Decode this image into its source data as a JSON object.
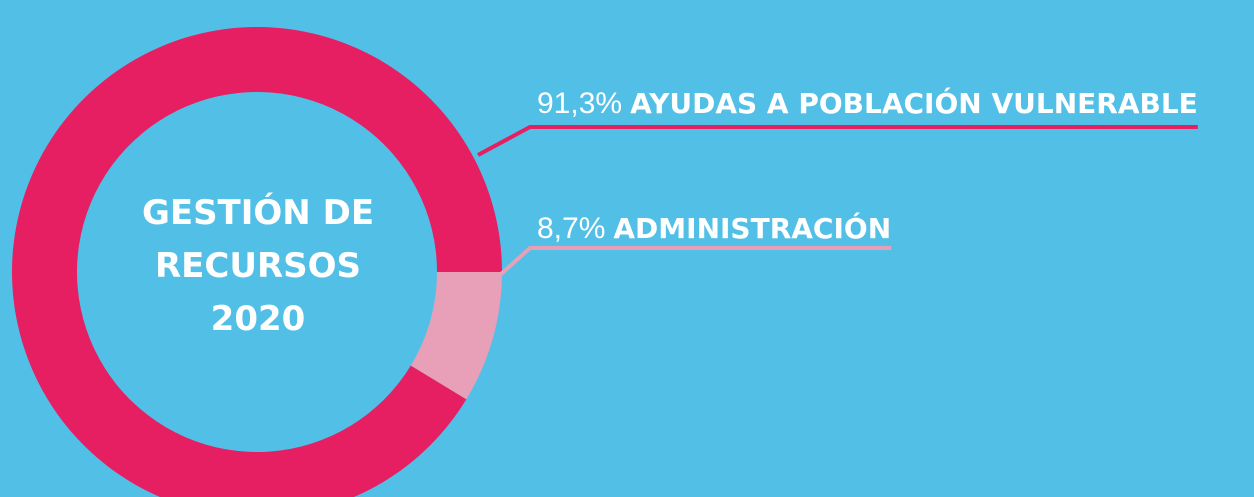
{
  "chart_data": {
    "type": "pie",
    "donut": true,
    "title": [
      "GESTIÓN DE",
      "RECURSOS",
      "2020"
    ],
    "categories": [
      "AYUDAS A POBLACIÓN VULNERABLE",
      "ADMINISTRACIÓN"
    ],
    "values": [
      91.3,
      8.7
    ],
    "value_labels": [
      "91,3%",
      "8,7%"
    ],
    "colors": [
      "#e61e62",
      "#e8a0b8"
    ]
  }
}
